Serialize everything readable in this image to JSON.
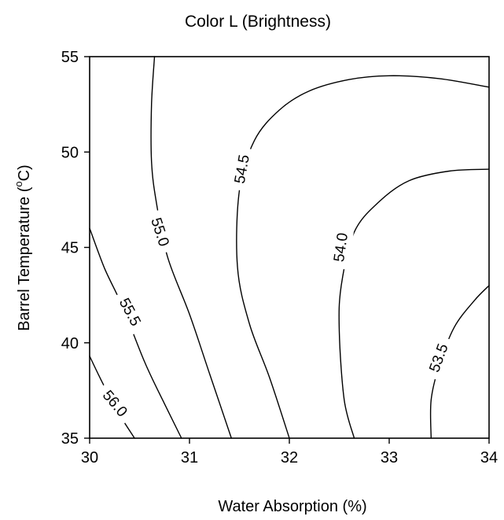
{
  "chart_data": {
    "type": "contour",
    "title": "Color L (Brightness)",
    "xlabel": "Water Absorption (%)",
    "ylabel": "Barrel Temperature (°C)",
    "ylabel_parts": {
      "prefix": "Barrel Temperature (",
      "degree": "o",
      "suffix": "C)"
    },
    "xlim": [
      30,
      34
    ],
    "ylim": [
      35,
      55
    ],
    "xticks": [
      30,
      31,
      32,
      33,
      34
    ],
    "yticks": [
      35,
      40,
      45,
      50,
      55
    ],
    "xtick_labels": [
      "30",
      "31",
      "32",
      "33",
      "34"
    ],
    "ytick_labels": [
      "35",
      "40",
      "45",
      "50",
      "55"
    ],
    "grid": false,
    "contours": [
      {
        "level": 56.0,
        "label": "56.0",
        "label_at": [
          30.25,
          36.8
        ],
        "label_angle": 50,
        "points": [
          [
            30.0,
            39.3
          ],
          [
            30.12,
            38.0
          ],
          [
            30.28,
            36.4
          ],
          [
            30.45,
            35.0
          ]
        ]
      },
      {
        "level": 55.5,
        "label": "55.5",
        "label_at": [
          30.4,
          41.6
        ],
        "label_angle": 62,
        "points": [
          [
            30.0,
            46.0
          ],
          [
            30.15,
            43.9
          ],
          [
            30.33,
            41.9
          ],
          [
            30.55,
            39.0
          ],
          [
            30.75,
            36.8
          ],
          [
            30.92,
            35.0
          ]
        ]
      },
      {
        "level": 55.0,
        "label": "55.0",
        "label_at": [
          30.7,
          45.8
        ],
        "label_angle": 72,
        "points": [
          [
            30.65,
            55.0
          ],
          [
            30.62,
            52.5
          ],
          [
            30.62,
            49.5
          ],
          [
            30.67,
            47.3
          ],
          [
            30.78,
            44.5
          ],
          [
            31.0,
            41.5
          ],
          [
            31.2,
            38.4
          ],
          [
            31.42,
            35.0
          ]
        ]
      },
      {
        "level": 54.5,
        "label": "54.5",
        "label_at": [
          31.53,
          49.1
        ],
        "label_angle": -80,
        "points": [
          [
            34.0,
            53.4
          ],
          [
            33.5,
            53.85
          ],
          [
            33.0,
            54.0
          ],
          [
            32.6,
            53.8
          ],
          [
            32.2,
            53.2
          ],
          [
            31.9,
            52.2
          ],
          [
            31.65,
            50.6
          ],
          [
            31.5,
            48.0
          ],
          [
            31.48,
            44.0
          ],
          [
            31.6,
            41.0
          ],
          [
            31.8,
            38.2
          ],
          [
            32.0,
            35.0
          ]
        ]
      },
      {
        "level": 54.0,
        "label": "54.0",
        "label_at": [
          32.52,
          45.0
        ],
        "label_angle": -82,
        "points": [
          [
            34.0,
            49.1
          ],
          [
            33.6,
            49.0
          ],
          [
            33.2,
            48.5
          ],
          [
            32.9,
            47.4
          ],
          [
            32.65,
            45.8
          ],
          [
            32.52,
            43.0
          ],
          [
            32.5,
            40.6
          ],
          [
            32.55,
            37.0
          ],
          [
            32.65,
            35.0
          ]
        ]
      },
      {
        "level": 53.5,
        "label": "53.5",
        "label_at": [
          33.5,
          39.2
        ],
        "label_angle": -70,
        "points": [
          [
            34.0,
            43.0
          ],
          [
            33.85,
            42.2
          ],
          [
            33.65,
            40.8
          ],
          [
            33.5,
            38.8
          ],
          [
            33.42,
            37.0
          ],
          [
            33.42,
            35.0
          ]
        ]
      }
    ]
  }
}
